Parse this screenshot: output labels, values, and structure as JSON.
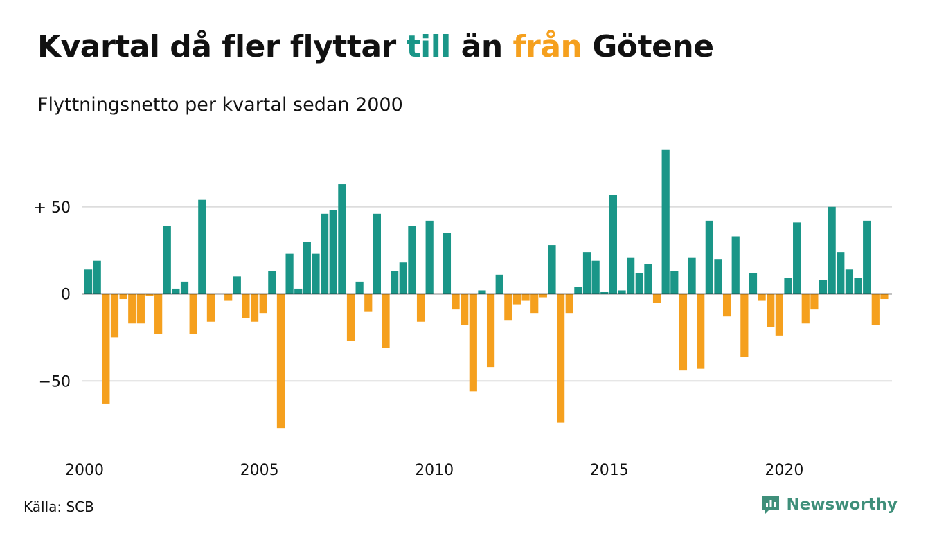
{
  "header": {
    "title_parts": [
      "Kvartal då fler flyttar ",
      "till",
      " än ",
      "från",
      " Götene"
    ],
    "subtitle": "Flyttningsnetto per kvartal sedan 2000"
  },
  "footer": {
    "source": "Källa: SCB",
    "brand": "Newsworthy"
  },
  "colors": {
    "positive": "#1a9688",
    "negative": "#f5a01e",
    "grid": "#dddddd",
    "axis": "#111111",
    "brand": "#3f8f7a"
  },
  "chart_data": {
    "type": "bar",
    "title": "Kvartal då fler flyttar till än från Götene",
    "subtitle": "Flyttningsnetto per kvartal sedan 2000",
    "x_start": "2000 Q1",
    "x_tick_labels": [
      "2000",
      "2005",
      "2010",
      "2015",
      "2020"
    ],
    "y_tick_values": [
      50,
      0,
      -50
    ],
    "y_tick_labels": [
      "+ 50",
      "0",
      "−50"
    ],
    "ylim": [
      -88,
      88
    ],
    "grid": true,
    "legend": "none",
    "values": [
      14,
      19,
      -63,
      -25,
      -3,
      -17,
      -17,
      -1,
      -23,
      39,
      3,
      7,
      -23,
      54,
      -16,
      0,
      -4,
      10,
      -14,
      -16,
      -11,
      13,
      -77,
      23,
      3,
      30,
      23,
      46,
      48,
      63,
      -27,
      7,
      -10,
      46,
      -31,
      13,
      18,
      39,
      -16,
      42,
      0,
      35,
      -9,
      -18,
      -56,
      2,
      -42,
      11,
      -15,
      -6,
      -4,
      -11,
      -2,
      28,
      -74,
      -11,
      4,
      24,
      19,
      1,
      57,
      2,
      21,
      12,
      17,
      -5,
      83,
      13,
      -44,
      21,
      -43,
      42,
      20,
      -13,
      33,
      -36,
      12,
      -4,
      -19,
      -24,
      9,
      41,
      -17,
      -9,
      8,
      50,
      24,
      14,
      9,
      42,
      -18,
      -3
    ]
  }
}
